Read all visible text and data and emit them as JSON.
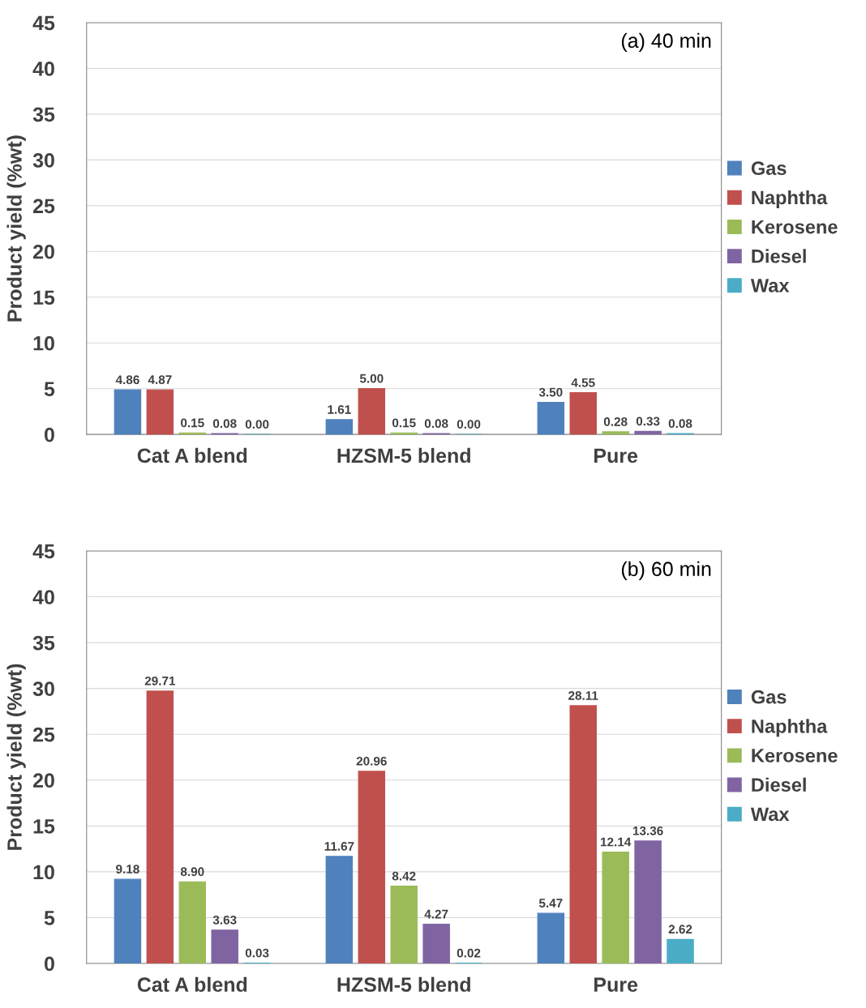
{
  "chart_data": [
    {
      "type": "bar",
      "annotations": [
        "(a) 40 min"
      ],
      "ylabel": "Product yield (%wt)",
      "categories": [
        "Cat A blend",
        "HZSM-5 blend",
        "Pure"
      ],
      "ylim": [
        0,
        45
      ],
      "yticks": [
        0,
        5,
        10,
        15,
        20,
        25,
        30,
        35,
        40,
        45
      ],
      "grid": "y",
      "legend": "right",
      "series": [
        {
          "name": "Gas",
          "color": "#4f81bd",
          "values": [
            4.86,
            1.61,
            3.5
          ],
          "value_labels": [
            "4.86",
            "1.61",
            "3.50"
          ]
        },
        {
          "name": "Naphtha",
          "color": "#c0504d",
          "values": [
            4.87,
            5.0,
            4.55
          ],
          "value_labels": [
            "4.87",
            "5.00",
            "4.55"
          ]
        },
        {
          "name": "Kerosene",
          "color": "#9bbb59",
          "values": [
            0.15,
            0.15,
            0.28
          ],
          "value_labels": [
            "0.15",
            "0.15",
            "0.28"
          ]
        },
        {
          "name": "Diesel",
          "color": "#8064a2",
          "values": [
            0.08,
            0.08,
            0.33
          ],
          "value_labels": [
            "0.08",
            "0.08",
            "0.33"
          ]
        },
        {
          "name": "Wax",
          "color": "#4bacc6",
          "values": [
            0.0,
            0.0,
            0.08
          ],
          "value_labels": [
            "0.00",
            "0.00",
            "0.08"
          ]
        }
      ]
    },
    {
      "type": "bar",
      "annotations": [
        "(b) 60 min"
      ],
      "ylabel": "Product yield (%wt)",
      "categories": [
        "Cat A blend",
        "HZSM-5 blend",
        "Pure"
      ],
      "ylim": [
        0,
        45
      ],
      "yticks": [
        0,
        5,
        10,
        15,
        20,
        25,
        30,
        35,
        40,
        45
      ],
      "grid": "y",
      "legend": "right",
      "series": [
        {
          "name": "Gas",
          "color": "#4f81bd",
          "values": [
            9.18,
            11.67,
            5.47
          ],
          "value_labels": [
            "9.18",
            "11.67",
            "5.47"
          ]
        },
        {
          "name": "Naphtha",
          "color": "#c0504d",
          "values": [
            29.71,
            20.96,
            28.11
          ],
          "value_labels": [
            "29.71",
            "20.96",
            "28.11"
          ]
        },
        {
          "name": "Kerosene",
          "color": "#9bbb59",
          "values": [
            8.9,
            8.42,
            12.14
          ],
          "value_labels": [
            "8.90",
            "8.42",
            "12.14"
          ]
        },
        {
          "name": "Diesel",
          "color": "#8064a2",
          "values": [
            3.63,
            4.27,
            13.36
          ],
          "value_labels": [
            "3.63",
            "4.27",
            "13.36"
          ]
        },
        {
          "name": "Wax",
          "color": "#4bacc6",
          "values": [
            0.03,
            0.02,
            2.62
          ],
          "value_labels": [
            "0.03",
            "0.02",
            "2.62"
          ]
        }
      ]
    }
  ]
}
